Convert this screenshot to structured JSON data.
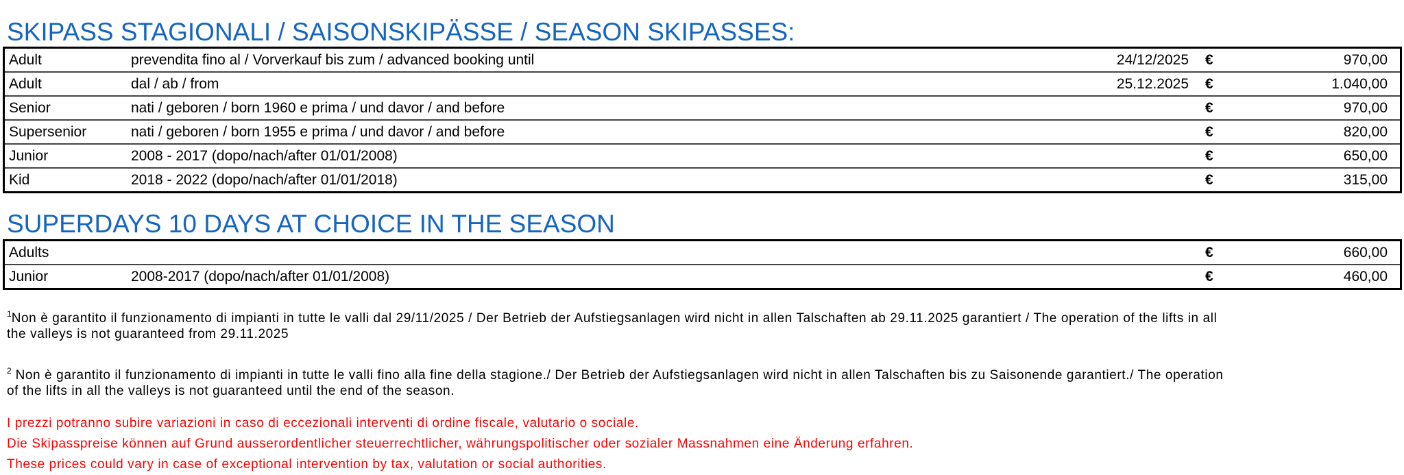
{
  "season": {
    "title": "SKIPASS STAGIONALI /  SAISONSKIPÄSSE /  SEASON SKIPASSES:",
    "currency": "€",
    "rows": [
      {
        "label": "Adult",
        "desc": "prevendita fino al /  Vorverkauf bis zum /  advanced booking until",
        "date": "24/12/2025",
        "price": "970,00"
      },
      {
        "label": "Adult",
        "desc": "dal /  ab /  from",
        "date": "25.12.2025",
        "price": "1.040,00"
      },
      {
        "label": "Senior",
        "desc": "nati  /  geboren /  born 1960 e prima / und davor /  and before",
        "date": "",
        "price": "970,00"
      },
      {
        "label": "Supersenior",
        "desc": "nati /  geboren /  born 1955 e prima /  und davor /  and before",
        "date": "",
        "price": "820,00"
      },
      {
        "label": "Junior",
        "desc": "2008 - 2017 (dopo/nach/after 01/01/2008)",
        "date": "",
        "price": "650,00"
      },
      {
        "label": "Kid",
        "desc": "2018 - 2022 (dopo/nach/after 01/01/2018)",
        "date": "",
        "price": "315,00"
      }
    ]
  },
  "superdays": {
    "title": "SUPERDAYS 10 DAYS AT CHOICE IN THE SEASON",
    "currency": "€",
    "rows": [
      {
        "label": "Adults",
        "desc": "",
        "price": "660,00"
      },
      {
        "label": "Junior",
        "desc": "2008-2017 (dopo/nach/after 01/01/2008)",
        "price": "460,00"
      }
    ]
  },
  "footnotes": [
    {
      "mark": "1",
      "lines": [
        "Non è garantito il funzionamento di impianti in tutte le valli dal 29/11/2025 /  Der Betrieb der Aufstiegsanlagen wird nicht in allen Talschaften ab 29.11.2025 garantiert /  The operation of the lifts in all",
        "the valleys is not guaranteed from 29.11.2025"
      ]
    },
    {
      "mark": "2",
      "lines": [
        " Non è garantito il funzionamento di impianti in tutte le valli fino alla fine della stagione./ Der Betrieb der Aufstiegsanlagen wird nicht in allen Talschaften bis zu Saisonende garantiert./ The operation",
        "of the lifts in all the valleys is not guaranteed until the end of the season."
      ]
    }
  ],
  "disclaimer": {
    "color": "#ff0000",
    "lines": [
      "I prezzi potranno subire variazioni in caso di eccezionali interventi di ordine fiscale, valutario o sociale.",
      "Die Skipasspreise können auf Grund ausserordentlicher steuerrechtlicher, währungspolitischer oder sozialer Massnahmen eine Änderung erfahren.",
      "These prices could vary in case of exceptional intervention by tax, valutation or social authorities."
    ]
  }
}
